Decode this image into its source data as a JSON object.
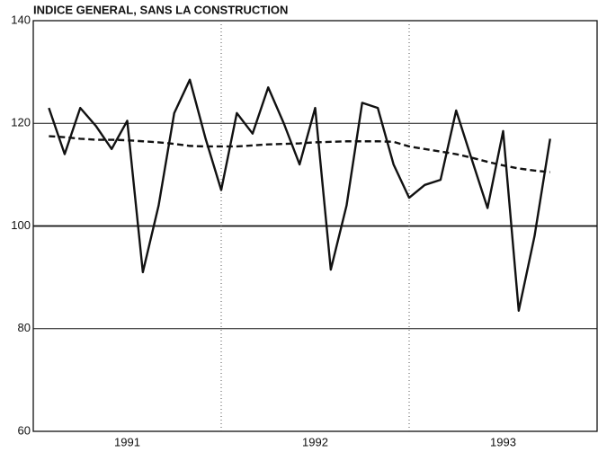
{
  "chart_data": {
    "type": "line",
    "title": "INDICE GENERAL, SANS LA CONSTRUCTION",
    "x": [
      1991.083,
      1991.167,
      1991.25,
      1991.333,
      1991.417,
      1991.5,
      1991.583,
      1991.667,
      1991.75,
      1991.833,
      1991.917,
      1992,
      1992.083,
      1992.167,
      1992.25,
      1992.333,
      1992.417,
      1992.5,
      1992.583,
      1992.667,
      1992.75,
      1992.833,
      1992.917,
      1993,
      1993.083,
      1993.167,
      1993.25,
      1993.333,
      1993.417,
      1993.5,
      1993.583,
      1993.667,
      1993.75
    ],
    "series": [
      {
        "color": "#111111",
        "dash": false,
        "values": [
          123,
          114,
          123,
          119.5,
          115,
          120.5,
          91,
          104,
          122,
          128.5,
          117,
          107,
          122,
          118,
          127,
          120,
          112,
          123,
          91.5,
          104,
          124,
          123,
          112,
          105.5,
          108,
          109,
          122.5,
          113,
          103.5,
          118.5,
          83.5,
          98,
          117
        ]
      },
      {
        "color": "#111111",
        "dash": true,
        "values": [
          117.5,
          117.3,
          117,
          116.8,
          116.8,
          116.7,
          116.5,
          116.3,
          116,
          115.6,
          115.5,
          115.5,
          115.5,
          115.7,
          115.9,
          116,
          116.1,
          116.3,
          116.4,
          116.5,
          116.5,
          116.5,
          116.4,
          115.5,
          115,
          114.5,
          114,
          113.3,
          112.5,
          111.8,
          111.2,
          110.8,
          110.5
        ]
      }
    ],
    "xlim": [
      1991,
      1994
    ],
    "xticks": [
      {
        "value": 1991.5,
        "label": "1991"
      },
      {
        "value": 1992.5,
        "label": "1992"
      },
      {
        "value": 1993.5,
        "label": "1993"
      }
    ],
    "xgrid": [
      1992,
      1993
    ],
    "ylim": [
      60,
      140
    ],
    "yticks": [
      60,
      80,
      100,
      120,
      140
    ],
    "grid": true
  }
}
